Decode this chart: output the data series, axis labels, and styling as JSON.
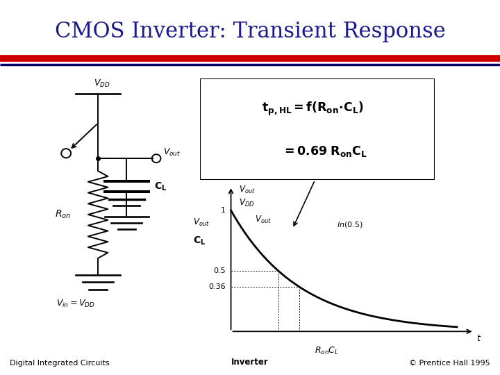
{
  "title": "CMOS Inverter: Transient Response",
  "title_color": "#1a1a8c",
  "title_fontsize": 22,
  "bg_color": "#ffffff",
  "stripe_red_color": "#cc0000",
  "stripe_blue_color": "#000066",
  "footer_left": "Digital Integrated Circuits",
  "footer_center": "Inverter",
  "footer_right": "© Prentice Hall 1995"
}
